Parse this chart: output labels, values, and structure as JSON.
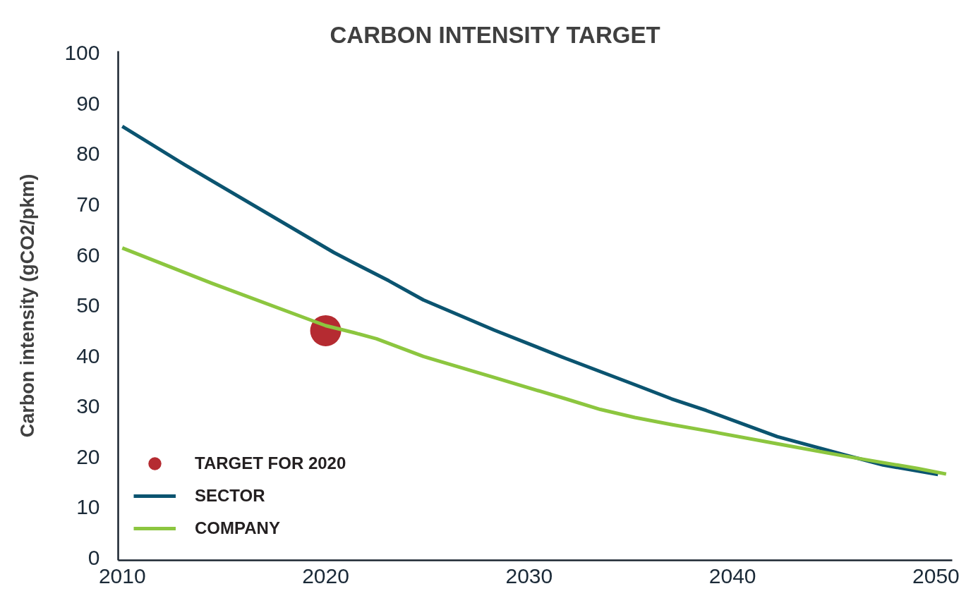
{
  "chart_data": {
    "type": "line",
    "title": "CARBON INTENSITY TARGET",
    "ylabel": "Carbon intensity (gCO2/pkm)",
    "xlim": [
      2009.8,
      2050.8
    ],
    "xticks": [
      2010,
      2020,
      2030,
      2040,
      2050
    ],
    "ylim": [
      -0.5,
      100.4
    ],
    "yticks": [
      0,
      10,
      20,
      30,
      40,
      50,
      60,
      70,
      80,
      90,
      100
    ],
    "grid": false,
    "legend": "bottom left",
    "line_style": "solid",
    "series": [
      {
        "name": "TARGET FOR 2020",
        "type": "scatter",
        "marker": "circle",
        "color": "#b52b31",
        "x": [
          2020
        ],
        "values": [
          45
        ]
      },
      {
        "name": "SECTOR",
        "color": "#0b5470",
        "x": [
          2010,
          2013.1,
          2020.4,
          2021.4,
          2023.1,
          2024.8,
          2028.3,
          2031.8,
          2035.2,
          2037.0,
          2038.7,
          2042.2,
          2045.6,
          2047.4,
          2050.1
        ],
        "values": [
          85.5,
          77.8,
          60.5,
          58.4,
          54.9,
          51.1,
          45.1,
          39.5,
          34.3,
          31.5,
          29.2,
          24.0,
          20.3,
          18.4,
          16.5
        ]
      },
      {
        "name": "COMPANY",
        "color": "#8cc63f",
        "x": [
          2010,
          2014.4,
          2020.0,
          2021.4,
          2022.5,
          2024.8,
          2028.3,
          2031.8,
          2033.5,
          2035.2,
          2037.0,
          2038.7,
          2042.2,
          2045.6,
          2049.1,
          2050.5
        ],
        "values": [
          61.4,
          54.4,
          46.0,
          44.6,
          43.4,
          39.9,
          35.7,
          31.5,
          29.4,
          27.8,
          26.4,
          25.2,
          22.6,
          20.1,
          17.7,
          16.6
        ]
      }
    ]
  }
}
